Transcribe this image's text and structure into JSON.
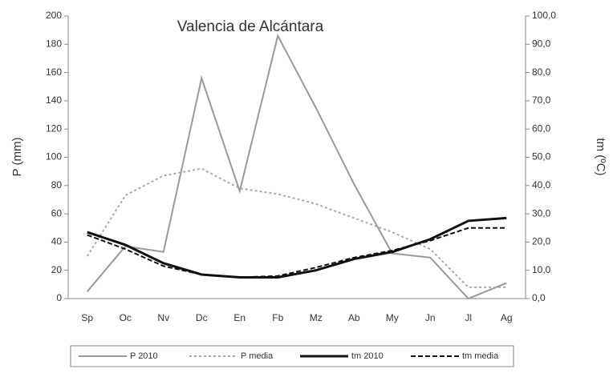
{
  "chart_data": {
    "type": "line",
    "title": "Valencia de Alcántara",
    "y_label": "P (mm)",
    "y2_label": "tm (ºC)",
    "categories": [
      "Sp",
      "Oc",
      "Nv",
      "Dc",
      "En",
      "Fb",
      "Mz",
      "Ab",
      "My",
      "Jn",
      "Jl",
      "Ag"
    ],
    "series": [
      {
        "name": "P 2010",
        "color": "#999999",
        "dash": "solid",
        "width": 2,
        "values": [
          5,
          37,
          33,
          156,
          76,
          186,
          135,
          81,
          32,
          29,
          0,
          11
        ]
      },
      {
        "name": "P media",
        "color": "#aaaaaa",
        "dash": "dotted",
        "width": 2,
        "values": [
          30,
          73,
          87,
          92,
          78,
          74,
          67,
          57,
          47,
          35,
          8,
          8
        ]
      },
      {
        "name": "tm 2010",
        "color": "#111111",
        "dash": "solid",
        "width": 3,
        "axis": "y2",
        "values": [
          23.5,
          19,
          12.5,
          8.5,
          7.5,
          7.5,
          10,
          14,
          16.5,
          21,
          27.5,
          28.5
        ]
      },
      {
        "name": "tm media",
        "color": "#111111",
        "dash": "dashed",
        "width": 2,
        "axis": "y2",
        "values": [
          22.5,
          17.5,
          11.5,
          8.5,
          7.5,
          8,
          11,
          14.5,
          17,
          20.5,
          25,
          25
        ]
      }
    ],
    "ylim": [
      0,
      200
    ],
    "yticks": [
      0,
      20,
      40,
      60,
      80,
      100,
      120,
      140,
      160,
      180,
      200
    ],
    "y2lim": [
      0,
      100
    ],
    "y2ticks": [
      {
        "value": 0,
        "label": "0,0"
      },
      {
        "value": 10,
        "label": "10,0"
      },
      {
        "value": 20,
        "label": "20,0"
      },
      {
        "value": 30,
        "label": "30,0"
      },
      {
        "value": 40,
        "label": "40,0"
      },
      {
        "value": 50,
        "label": "50,0"
      },
      {
        "value": 60,
        "label": "60,0"
      },
      {
        "value": 70,
        "label": "70,0"
      },
      {
        "value": 80,
        "label": "80,0"
      },
      {
        "value": 90,
        "label": "90,0"
      },
      {
        "value": 100,
        "label": "100,0"
      }
    ],
    "legend": "bottom"
  }
}
